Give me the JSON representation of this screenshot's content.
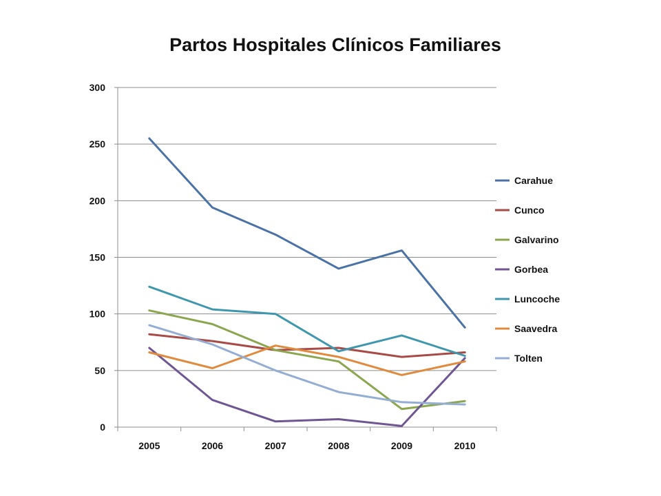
{
  "chart_data": {
    "type": "line",
    "title": "Partos Hospitales Clínicos Familiares",
    "xlabel": "",
    "ylabel": "",
    "x": [
      "2005",
      "2006",
      "2007",
      "2008",
      "2009",
      "2010"
    ],
    "ylim": [
      0,
      300
    ],
    "yticks": [
      "0",
      "50",
      "100",
      "150",
      "200",
      "250",
      "300"
    ],
    "grid": true,
    "legend_position": "right",
    "series": [
      {
        "name": "Carahue",
        "color": "#4a72a6",
        "values": [
          255,
          194,
          170,
          140,
          156,
          88
        ]
      },
      {
        "name": "Cunco",
        "color": "#a84a45",
        "values": [
          82,
          76,
          68,
          70,
          62,
          66
        ]
      },
      {
        "name": "Galvarino",
        "color": "#8aa64e",
        "values": [
          103,
          91,
          68,
          58,
          16,
          23
        ]
      },
      {
        "name": "Gorbea",
        "color": "#6f5592",
        "values": [
          70,
          24,
          5,
          7,
          1,
          61
        ]
      },
      {
        "name": "Luncoche",
        "color": "#3f97ad",
        "values": [
          124,
          104,
          100,
          67,
          81,
          63
        ]
      },
      {
        "name": "Saavedra",
        "color": "#e08a3e",
        "values": [
          66,
          52,
          72,
          62,
          46,
          58
        ]
      },
      {
        "name": "Tolten",
        "color": "#94aed3",
        "values": [
          90,
          73,
          50,
          31,
          22,
          20
        ]
      }
    ]
  }
}
